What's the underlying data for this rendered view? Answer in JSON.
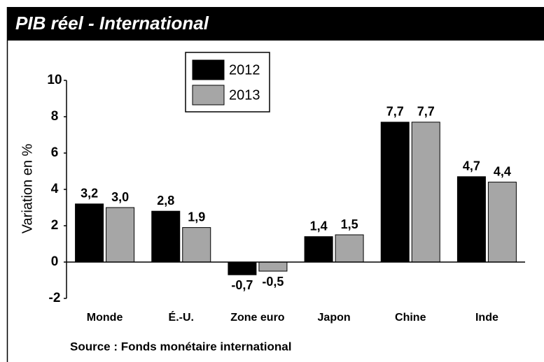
{
  "chart_data": {
    "type": "bar",
    "title": "PIB réel - International",
    "y_label": "Variation en %",
    "source": "Source : Fonds monétaire international",
    "categories": [
      "Monde",
      "É.-U.",
      "Zone euro",
      "Japon",
      "Chine",
      "Inde"
    ],
    "series": [
      {
        "name": "2012",
        "color": "#000000",
        "values": [
          3.2,
          2.8,
          -0.7,
          1.4,
          7.7,
          4.7
        ],
        "value_labels": [
          "3,2",
          "2,8",
          "-0,7",
          "1,4",
          "7,7",
          "4,7"
        ]
      },
      {
        "name": "2013",
        "color": "#a6a6a6",
        "values": [
          3.0,
          1.9,
          -0.5,
          1.5,
          7.7,
          4.4
        ],
        "value_labels": [
          "3,0",
          "1,9",
          "-0,5",
          "1,5",
          "7,7",
          "4,4"
        ]
      }
    ],
    "ylim": [
      -2,
      10
    ],
    "yticks": [
      -2,
      0,
      2,
      4,
      6,
      8,
      10
    ],
    "grid": false
  }
}
